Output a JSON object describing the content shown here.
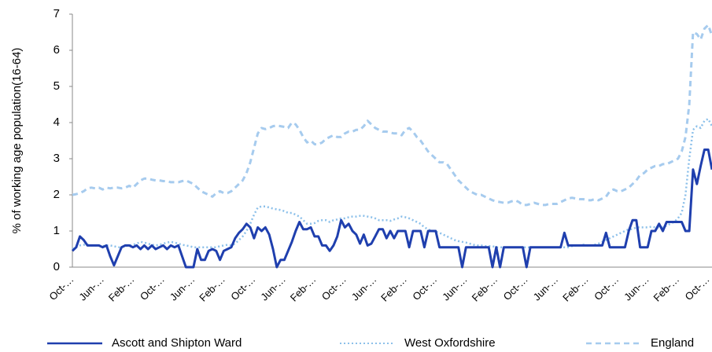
{
  "chart_data": {
    "type": "line",
    "y_label": "% of working age population(16-64)",
    "ylim": [
      0,
      7
    ],
    "yticks": [
      0,
      1,
      2,
      3,
      4,
      5,
      6,
      7
    ],
    "grid": false,
    "legend": "bottom",
    "categories": [
      "Oct-…",
      null,
      null,
      null,
      null,
      null,
      null,
      null,
      "Jun-…",
      null,
      null,
      null,
      null,
      null,
      null,
      null,
      "Feb-…",
      null,
      null,
      null,
      null,
      null,
      null,
      null,
      "Oct-…",
      null,
      null,
      null,
      null,
      null,
      null,
      null,
      "Jun-…",
      null,
      null,
      null,
      null,
      null,
      null,
      null,
      "Feb-…",
      null,
      null,
      null,
      null,
      null,
      null,
      null,
      "Oct-…",
      null,
      null,
      null,
      null,
      null,
      null,
      null,
      "Jun-…",
      null,
      null,
      null,
      null,
      null,
      null,
      null,
      "Feb-…",
      null,
      null,
      null,
      null,
      null,
      null,
      null,
      "Oct-…",
      null,
      null,
      null,
      null,
      null,
      null,
      null,
      "Jun-…",
      null,
      null,
      null,
      null,
      null,
      null,
      null,
      "Feb-…",
      null,
      null,
      null,
      null,
      null,
      null,
      null,
      "Oct-…",
      null,
      null,
      null,
      null,
      null,
      null,
      null,
      "Jun-…",
      null,
      null,
      null,
      null,
      null,
      null,
      null,
      "Feb-…",
      null,
      null,
      null,
      null,
      null,
      null,
      null,
      "Oct-…",
      null,
      null,
      null,
      null,
      null,
      null,
      null,
      "Jun-…",
      null,
      null,
      null,
      null,
      null,
      null,
      null,
      "Feb-…",
      null,
      null,
      null,
      null,
      null,
      null,
      null,
      "Oct-…",
      null,
      null,
      null,
      null,
      null,
      null,
      null,
      "Jun-…",
      null,
      null,
      null,
      null,
      null,
      null,
      null,
      "Feb-…",
      null,
      null,
      null,
      null,
      null,
      null,
      null,
      "Oct-…",
      null
    ],
    "series": [
      {
        "name": "Ascott and Shipton Ward",
        "color": "#1f3fae",
        "style": "solid",
        "values": [
          0.45,
          0.55,
          0.85,
          0.75,
          0.6,
          0.6,
          0.6,
          0.6,
          0.55,
          0.6,
          0.3,
          0.05,
          0.3,
          0.55,
          0.6,
          0.6,
          0.55,
          0.6,
          0.5,
          0.6,
          0.5,
          0.6,
          0.5,
          0.55,
          0.6,
          0.5,
          0.6,
          0.55,
          0.6,
          0.3,
          0,
          0,
          0,
          0.5,
          0.2,
          0.2,
          0.45,
          0.5,
          0.45,
          0.2,
          0.45,
          0.5,
          0.55,
          0.8,
          0.95,
          1.05,
          1.2,
          1.1,
          0.8,
          1.1,
          1.0,
          1.1,
          0.9,
          0.5,
          0,
          0.2,
          0.2,
          0.45,
          0.7,
          1.0,
          1.25,
          1.05,
          1.05,
          1.1,
          0.85,
          0.85,
          0.6,
          0.6,
          0.45,
          0.6,
          0.85,
          1.3,
          1.1,
          1.2,
          1.0,
          0.9,
          0.65,
          0.9,
          0.6,
          0.65,
          0.85,
          1.05,
          1.05,
          0.8,
          1.0,
          0.8,
          1.0,
          1.0,
          1.0,
          0.55,
          1.0,
          1.0,
          1.0,
          0.55,
          1.0,
          1.0,
          1.0,
          0.55,
          0.55,
          0.55,
          0.55,
          0.55,
          0.55,
          0,
          0.55,
          0.55,
          0.55,
          0.55,
          0.55,
          0.55,
          0.55,
          0,
          0.55,
          0,
          0.55,
          0.55,
          0.55,
          0.55,
          0.55,
          0.55,
          0,
          0.55,
          0.55,
          0.55,
          0.55,
          0.55,
          0.55,
          0.55,
          0.55,
          0.55,
          0.95,
          0.6,
          0.6,
          0.6,
          0.6,
          0.6,
          0.6,
          0.6,
          0.6,
          0.6,
          0.6,
          0.95,
          0.55,
          0.55,
          0.55,
          0.55,
          0.55,
          1.0,
          1.3,
          1.3,
          0.55,
          0.55,
          0.55,
          1.0,
          1.0,
          1.2,
          1.0,
          1.25,
          1.25,
          1.25,
          1.25,
          1.25,
          1.0,
          1.0,
          2.7,
          2.3,
          2.8,
          3.25,
          3.25,
          2.7
        ]
      },
      {
        "name": "West Oxfordshire",
        "color": "#8cc0ea",
        "style": "dotted",
        "values": [
          0.5,
          0.55,
          0.6,
          0.62,
          0.62,
          0.6,
          0.6,
          0.6,
          0.58,
          0.6,
          0.6,
          0.58,
          0.55,
          0.55,
          0.58,
          0.6,
          0.62,
          0.65,
          0.7,
          0.68,
          0.65,
          0.62,
          0.6,
          0.62,
          0.65,
          0.68,
          0.7,
          0.68,
          0.65,
          0.62,
          0.6,
          0.58,
          0.55,
          0.55,
          0.55,
          0.55,
          0.55,
          0.55,
          0.55,
          0.58,
          0.6,
          0.62,
          0.6,
          0.65,
          0.75,
          0.85,
          1.0,
          1.2,
          1.45,
          1.65,
          1.68,
          1.68,
          1.65,
          1.62,
          1.6,
          1.58,
          1.55,
          1.5,
          1.5,
          1.45,
          1.4,
          1.3,
          1.2,
          1.2,
          1.22,
          1.28,
          1.3,
          1.3,
          1.25,
          1.3,
          1.32,
          1.35,
          1.35,
          1.38,
          1.4,
          1.4,
          1.42,
          1.42,
          1.4,
          1.38,
          1.35,
          1.3,
          1.3,
          1.3,
          1.28,
          1.32,
          1.35,
          1.4,
          1.38,
          1.35,
          1.3,
          1.25,
          1.2,
          1.1,
          1.05,
          1.0,
          0.98,
          0.95,
          0.9,
          0.85,
          0.8,
          0.75,
          0.72,
          0.7,
          0.68,
          0.65,
          0.62,
          0.6,
          0.6,
          0.58,
          0.58,
          0.58,
          0.55,
          0.55,
          0.55,
          0.55,
          0.55,
          0.55,
          0.55,
          0.55,
          0.55,
          0.55,
          0.55,
          0.55,
          0.55,
          0.55,
          0.55,
          0.55,
          0.55,
          0.55,
          0.55,
          0.55,
          0.58,
          0.6,
          0.6,
          0.62,
          0.6,
          0.6,
          0.62,
          0.65,
          0.7,
          0.75,
          0.8,
          0.85,
          0.9,
          0.95,
          1.0,
          1.05,
          1.05,
          1.1,
          1.1,
          1.1,
          1.1,
          1.12,
          1.1,
          1.1,
          1.1,
          1.15,
          1.2,
          1.25,
          1.35,
          1.5,
          2.0,
          3.0,
          3.8,
          3.9,
          3.85,
          4.05,
          4.1,
          3.9
        ]
      },
      {
        "name": "England",
        "color": "#a6cbee",
        "style": "dashed",
        "values": [
          2.0,
          2.02,
          2.05,
          2.1,
          2.18,
          2.2,
          2.18,
          2.2,
          2.15,
          2.2,
          2.18,
          2.2,
          2.2,
          2.18,
          2.2,
          2.25,
          2.2,
          2.3,
          2.4,
          2.45,
          2.45,
          2.42,
          2.4,
          2.4,
          2.38,
          2.38,
          2.35,
          2.35,
          2.35,
          2.38,
          2.4,
          2.35,
          2.3,
          2.2,
          2.1,
          2.05,
          2.0,
          1.95,
          2.05,
          2.1,
          2.05,
          2.05,
          2.1,
          2.2,
          2.3,
          2.4,
          2.6,
          2.9,
          3.3,
          3.7,
          3.85,
          3.82,
          3.85,
          3.9,
          3.92,
          3.9,
          3.88,
          3.85,
          4.0,
          3.95,
          3.8,
          3.6,
          3.45,
          3.5,
          3.4,
          3.4,
          3.45,
          3.55,
          3.6,
          3.65,
          3.6,
          3.6,
          3.7,
          3.75,
          3.75,
          3.8,
          3.8,
          3.9,
          4.05,
          3.95,
          3.85,
          3.8,
          3.75,
          3.75,
          3.72,
          3.7,
          3.7,
          3.65,
          3.8,
          3.85,
          3.75,
          3.6,
          3.5,
          3.35,
          3.2,
          3.1,
          3.0,
          2.9,
          2.9,
          2.85,
          2.7,
          2.55,
          2.4,
          2.3,
          2.2,
          2.1,
          2.05,
          2.0,
          2.0,
          1.95,
          1.9,
          1.85,
          1.82,
          1.8,
          1.78,
          1.78,
          1.82,
          1.85,
          1.8,
          1.72,
          1.72,
          1.75,
          1.78,
          1.75,
          1.72,
          1.72,
          1.75,
          1.75,
          1.75,
          1.8,
          1.85,
          1.9,
          1.92,
          1.9,
          1.88,
          1.88,
          1.85,
          1.85,
          1.88,
          1.85,
          1.9,
          1.95,
          2.1,
          2.15,
          2.1,
          2.1,
          2.15,
          2.2,
          2.3,
          2.4,
          2.55,
          2.6,
          2.7,
          2.75,
          2.8,
          2.8,
          2.85,
          2.85,
          2.9,
          2.95,
          3.0,
          3.2,
          3.6,
          4.5,
          6.5,
          6.45,
          6.3,
          6.6,
          6.7,
          6.4
        ]
      }
    ]
  }
}
